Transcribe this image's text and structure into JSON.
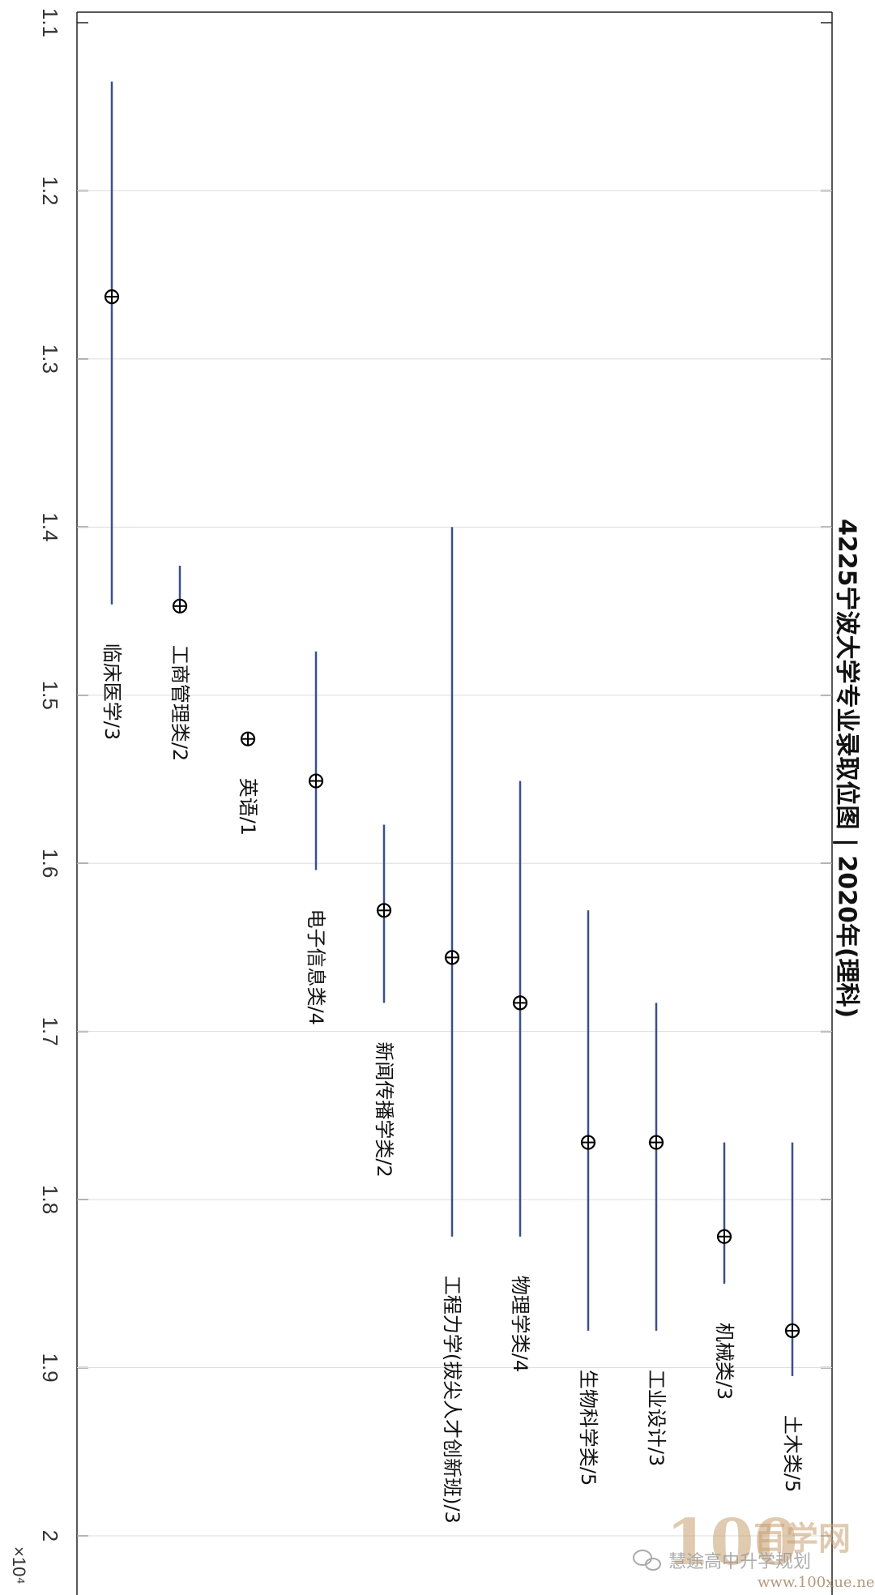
{
  "chart_data": {
    "type": "errorbar",
    "title": "4225宁波大学专业录取位图 | 2020年(理科)",
    "axis": {
      "range": [
        1.1,
        2.0
      ],
      "ticks": [
        "1.1",
        "1.2",
        "1.3",
        "1.4",
        "1.5",
        "1.6",
        "1.7",
        "1.8",
        "1.9",
        "2"
      ],
      "exponent_label": "×10⁴",
      "grid": true,
      "orientation": "rotated-90"
    },
    "series": [
      {
        "label": "临床医学/3",
        "marker": 1.263,
        "min": 1.135,
        "max": 1.446
      },
      {
        "label": "工商管理类/2",
        "marker": 1.447,
        "min": 1.423,
        "max": 1.447
      },
      {
        "label": "英语/1",
        "marker": 1.526,
        "min": 1.526,
        "max": 1.526
      },
      {
        "label": "电子信息类/4",
        "marker": 1.551,
        "min": 1.474,
        "max": 1.604
      },
      {
        "label": "新闻传播学类/2",
        "marker": 1.628,
        "min": 1.577,
        "max": 1.683
      },
      {
        "label": "工程力学(拔尖人才创新班)/3",
        "marker": 1.656,
        "min": 1.4,
        "max": 1.822
      },
      {
        "label": "物理学类/4",
        "marker": 1.683,
        "min": 1.551,
        "max": 1.822
      },
      {
        "label": "生物科学类/5",
        "marker": 1.766,
        "min": 1.628,
        "max": 1.878
      },
      {
        "label": "工业设计/3",
        "marker": 1.766,
        "min": 1.683,
        "max": 1.878
      },
      {
        "label": "机械类/3",
        "marker": 1.822,
        "min": 1.766,
        "max": 1.85
      },
      {
        "label": "土木类/5",
        "marker": 1.878,
        "min": 1.766,
        "max": 1.905
      }
    ]
  },
  "watermark": {
    "number": "100",
    "brand": "百学网",
    "account": "慧途高中升学规划",
    "url": "www.100xue.net"
  }
}
